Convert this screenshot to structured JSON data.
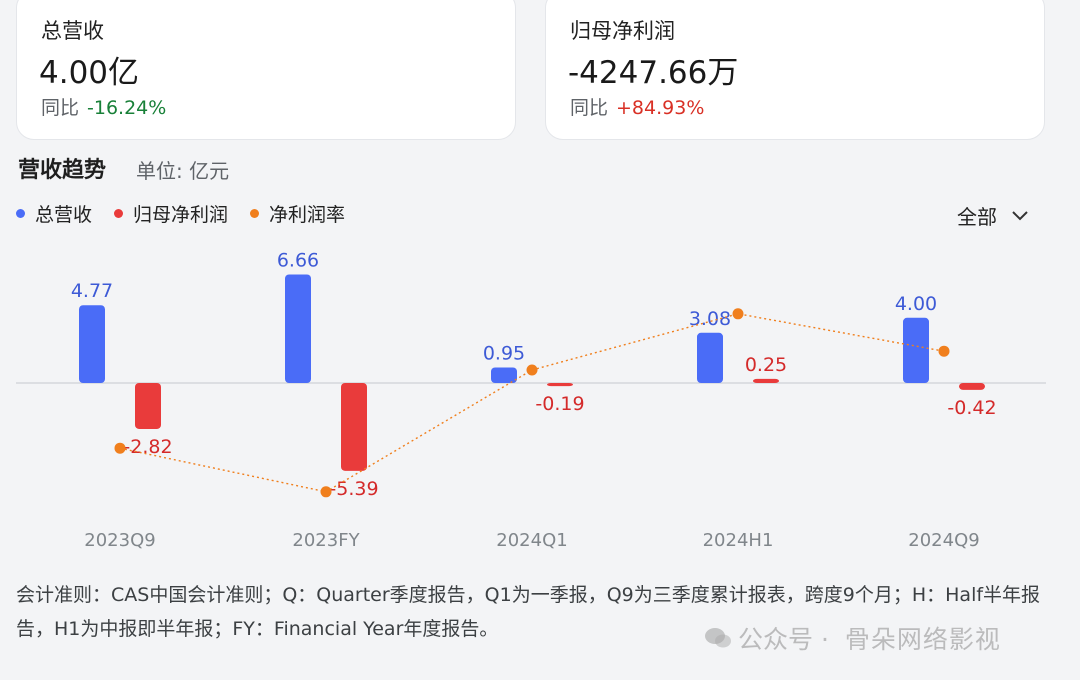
{
  "cards": [
    {
      "label": "总营收",
      "value": "4.00亿",
      "yoy_label": "同比",
      "yoy_value": "-16.24%",
      "yoy_color": "#188038"
    },
    {
      "label": "归母净利润",
      "value": "-4247.66万",
      "yoy_label": "同比",
      "yoy_value": "+84.93%",
      "yoy_color": "#d93025"
    }
  ],
  "section": {
    "title": "营收趋势",
    "unit": "单位: 亿元"
  },
  "filter": {
    "label": "全部"
  },
  "legend": [
    {
      "label": "总营收",
      "color": "#4a6cf7"
    },
    {
      "label": "归母净利润",
      "color": "#e93b3b"
    },
    {
      "label": "净利润率",
      "color": "#f07f1d"
    }
  ],
  "chart_data": {
    "type": "bar",
    "categories": [
      "2023Q9",
      "2023FY",
      "2024Q1",
      "2024H1",
      "2024Q9"
    ],
    "series": [
      {
        "name": "总营收",
        "kind": "bar",
        "color": "#4a6cf7",
        "values": [
          4.77,
          6.66,
          0.95,
          3.08,
          4.0
        ],
        "labels": [
          "4.77",
          "6.66",
          "0.95",
          "3.08",
          "4.00"
        ]
      },
      {
        "name": "归母净利润",
        "kind": "bar",
        "color": "#e93b3b",
        "values": [
          -2.82,
          -5.39,
          -0.19,
          0.25,
          -0.42
        ],
        "labels": [
          "-2.82",
          "-5.39",
          "-0.19",
          "0.25",
          "-0.42"
        ]
      },
      {
        "name": "净利润率",
        "kind": "line",
        "color": "#f07f1d",
        "values": [
          -59.1,
          -80.9,
          -20.0,
          8.1,
          -10.6
        ]
      }
    ],
    "ylim": [
      -5.8,
      8.5
    ],
    "y2lim": [
      -95,
      40
    ],
    "grid": false,
    "legend_position": "top-left"
  },
  "footnote": "会计准则：CAS中国会计准则；Q：Quarter季度报告，Q1为一季报，Q9为三季度累计报表，跨度9个月；H：Half半年报告，H1为中报即半年报；FY：Financial Year年度报告。",
  "watermark": {
    "prefix": "公众号 ·",
    "name": "骨朵网络影视"
  }
}
